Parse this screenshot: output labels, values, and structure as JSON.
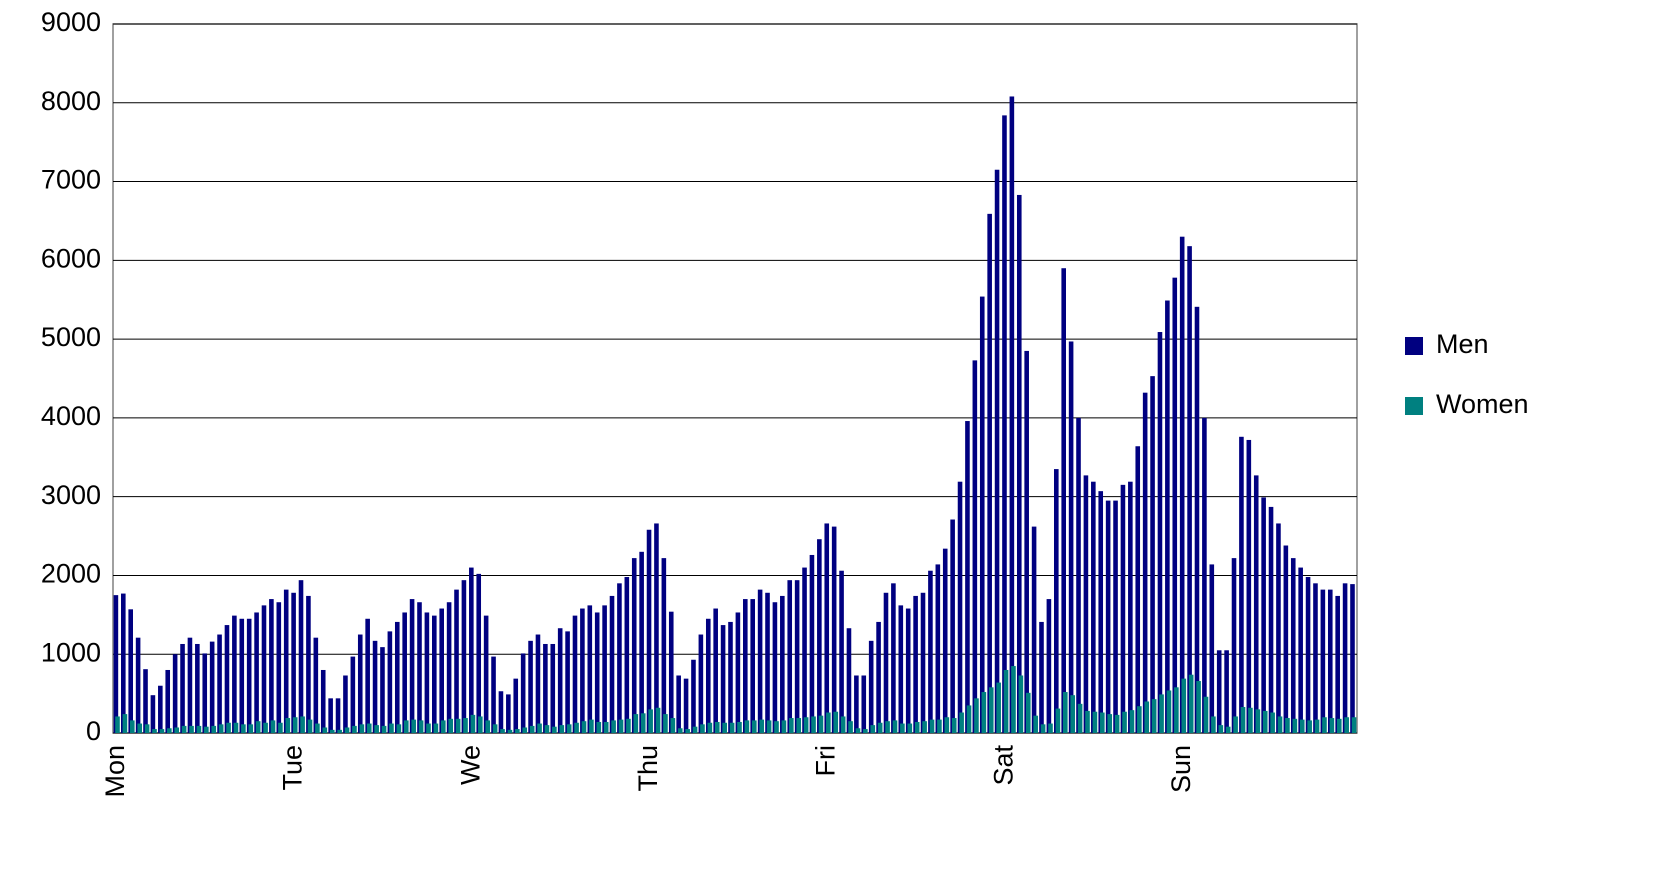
{
  "chart_data": {
    "type": "bar",
    "categories": [
      "Mon",
      null,
      null,
      null,
      null,
      null,
      null,
      null,
      null,
      null,
      null,
      null,
      null,
      null,
      null,
      null,
      null,
      null,
      null,
      null,
      null,
      null,
      null,
      null,
      "Tue",
      null,
      null,
      null,
      null,
      null,
      null,
      null,
      null,
      null,
      null,
      null,
      null,
      null,
      null,
      null,
      null,
      null,
      null,
      null,
      null,
      null,
      null,
      null,
      "We",
      null,
      null,
      null,
      null,
      null,
      null,
      null,
      null,
      null,
      null,
      null,
      null,
      null,
      null,
      null,
      null,
      null,
      null,
      null,
      null,
      null,
      null,
      null,
      "Thu",
      null,
      null,
      null,
      null,
      null,
      null,
      null,
      null,
      null,
      null,
      null,
      null,
      null,
      null,
      null,
      null,
      null,
      null,
      null,
      null,
      null,
      null,
      null,
      "Fri",
      null,
      null,
      null,
      null,
      null,
      null,
      null,
      null,
      null,
      null,
      null,
      null,
      null,
      null,
      null,
      null,
      null,
      null,
      null,
      null,
      null,
      null,
      null,
      "Sat",
      null,
      null,
      null,
      null,
      null,
      null,
      null,
      null,
      null,
      null,
      null,
      null,
      null,
      null,
      null,
      null,
      null,
      null,
      null,
      null,
      null,
      null,
      null,
      "Sun",
      null,
      null,
      null,
      null,
      null,
      null,
      null,
      null,
      null,
      null,
      null,
      null,
      null,
      null,
      null,
      null,
      null,
      null,
      null,
      null,
      null,
      null,
      null
    ],
    "series": [
      {
        "name": "Men",
        "color": "#000080",
        "values": [
          1750,
          1770,
          1570,
          1210,
          810,
          480,
          600,
          800,
          1000,
          1130,
          1210,
          1130,
          1010,
          1160,
          1250,
          1370,
          1490,
          1450,
          1450,
          1530,
          1620,
          1700,
          1660,
          1820,
          1780,
          1940,
          1740,
          1210,
          800,
          440,
          440,
          730,
          970,
          1250,
          1450,
          1170,
          1090,
          1290,
          1410,
          1530,
          1700,
          1660,
          1530,
          1490,
          1580,
          1660,
          1820,
          1940,
          2100,
          2020,
          1490,
          970,
          530,
          490,
          690,
          1010,
          1170,
          1250,
          1130,
          1130,
          1330,
          1290,
          1490,
          1580,
          1620,
          1530,
          1620,
          1740,
          1900,
          1980,
          2220,
          2300,
          2580,
          2660,
          2220,
          1540,
          730,
          690,
          930,
          1250,
          1450,
          1580,
          1370,
          1410,
          1530,
          1700,
          1700,
          1820,
          1780,
          1660,
          1740,
          1940,
          1940,
          2100,
          2260,
          2460,
          2660,
          2620,
          2060,
          1330,
          730,
          730,
          1170,
          1410,
          1780,
          1900,
          1620,
          1580,
          1740,
          1780,
          2060,
          2140,
          2340,
          2710,
          3190,
          3960,
          4730,
          5540,
          6590,
          7150,
          7840,
          8080,
          6830,
          4850,
          2620,
          1410,
          1700,
          3350,
          5900,
          4970,
          4000,
          3270,
          3190,
          3070,
          2950,
          2950,
          3150,
          3190,
          3640,
          4320,
          4530,
          5090,
          5490,
          5780,
          6300,
          6180,
          5410,
          4000,
          2140,
          1050,
          1050,
          2220,
          3760,
          3720,
          3270,
          2990,
          2870,
          2660,
          2380,
          2220,
          2100,
          1980,
          1900,
          1820,
          1820,
          1740,
          1900,
          1890
        ]
      },
      {
        "name": "Women",
        "color": "#008080",
        "values": [
          210,
          240,
          160,
          120,
          110,
          50,
          50,
          60,
          70,
          90,
          90,
          90,
          80,
          90,
          110,
          130,
          130,
          110,
          110,
          150,
          130,
          160,
          130,
          190,
          200,
          210,
          170,
          120,
          70,
          40,
          40,
          70,
          90,
          110,
          120,
          100,
          90,
          120,
          110,
          160,
          170,
          160,
          120,
          120,
          160,
          180,
          180,
          190,
          230,
          210,
          160,
          110,
          50,
          40,
          50,
          70,
          90,
          120,
          100,
          80,
          100,
          110,
          130,
          150,
          170,
          140,
          140,
          160,
          170,
          180,
          240,
          250,
          300,
          320,
          240,
          190,
          60,
          50,
          80,
          110,
          130,
          140,
          130,
          130,
          140,
          160,
          160,
          170,
          160,
          150,
          160,
          190,
          190,
          200,
          210,
          220,
          260,
          270,
          210,
          150,
          60,
          50,
          100,
          130,
          150,
          160,
          120,
          120,
          140,
          150,
          170,
          170,
          200,
          190,
          260,
          350,
          440,
          520,
          580,
          640,
          800,
          850,
          730,
          510,
          220,
          110,
          120,
          310,
          520,
          480,
          370,
          280,
          270,
          260,
          240,
          230,
          270,
          290,
          340,
          400,
          430,
          490,
          540,
          580,
          690,
          740,
          660,
          460,
          210,
          100,
          80,
          210,
          330,
          320,
          300,
          280,
          260,
          210,
          190,
          180,
          170,
          160,
          170,
          200,
          190,
          180,
          200,
          200
        ]
      }
    ],
    "ylim": [
      0,
      9000
    ],
    "yticks": [
      0,
      1000,
      2000,
      3000,
      4000,
      5000,
      6000,
      7000,
      8000,
      9000
    ],
    "grid": true,
    "legend": "right"
  }
}
